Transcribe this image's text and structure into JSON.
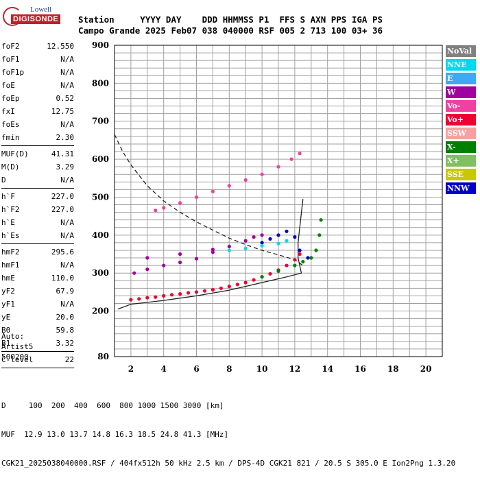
{
  "logo": {
    "top": "Lowell",
    "main": "DIGISONDE"
  },
  "header": {
    "labels": [
      "Station",
      "YYYY",
      "DAY",
      "DDD",
      "HHMMSS",
      "P1",
      "FFS",
      "S",
      "AXN",
      "PPS",
      "IGA",
      "PS"
    ],
    "values": [
      "Campo Grande",
      "2025",
      "Feb07",
      "038",
      "040000",
      "RSF",
      "005",
      "2",
      "713",
      "100",
      "03+",
      "36"
    ]
  },
  "params": [
    {
      "name": "foF2",
      "value": "12.550"
    },
    {
      "name": "foF1",
      "value": "N/A"
    },
    {
      "name": "foF1p",
      "value": "N/A"
    },
    {
      "name": "foE",
      "value": "N/A"
    },
    {
      "name": "foEp",
      "value": "0.52"
    },
    {
      "name": "fxI",
      "value": "12.75"
    },
    {
      "name": "foEs",
      "value": "N/A"
    },
    {
      "name": "fmin",
      "value": "2.30"
    },
    {
      "sep": true
    },
    {
      "name": "MUF(D)",
      "value": "41.31"
    },
    {
      "name": "M(D)",
      "value": "3.29"
    },
    {
      "name": "D",
      "value": "N/A"
    },
    {
      "sep": true
    },
    {
      "name": "h`F",
      "value": "227.0"
    },
    {
      "name": "h`F2",
      "value": "227.0"
    },
    {
      "name": "h`E",
      "value": "N/A"
    },
    {
      "name": "h`Es",
      "value": "N/A"
    },
    {
      "sep": true
    },
    {
      "name": "hmF2",
      "value": "295.6"
    },
    {
      "name": "hmF1",
      "value": "N/A"
    },
    {
      "name": "hmE",
      "value": "110.0"
    },
    {
      "name": "yF2",
      "value": "67.9"
    },
    {
      "name": "yF1",
      "value": "N/A"
    },
    {
      "name": "yE",
      "value": "20.0"
    },
    {
      "name": "B0",
      "value": "59.8"
    },
    {
      "name": "B1",
      "value": "3.32"
    },
    {
      "sep": true
    },
    {
      "name": "C-level",
      "value": "22"
    },
    {
      "sep": true
    }
  ],
  "auto": {
    "line1": "Auto:",
    "line2": "Artist5",
    "line3": "500200"
  },
  "footer": {
    "line1": "D     100  200  400  600  800 1000 1500 3000 [km]",
    "line2": "MUF  12.9 13.0 13.7 14.8 16.3 18.5 24.8 41.3 [MHz]",
    "line3": "CGK21_2025038040000.RSF / 404fx512h 50 kHz 2.5 km / DPS-4D CGK21 821 / 20.5 S 305.0 E Ion2Png 1.3.20"
  },
  "legend": [
    {
      "label": "NoVal",
      "color": "#808080"
    },
    {
      "label": "NNE",
      "color": "#00d8f0"
    },
    {
      "label": "E",
      "color": "#40a8f0"
    },
    {
      "label": "W",
      "color": "#a000a0"
    },
    {
      "label": "Vo-",
      "color": "#f040a0"
    },
    {
      "label": "Vo+",
      "color": "#f00030"
    },
    {
      "label": "SSW",
      "color": "#f8a0a0"
    },
    {
      "label": "X-",
      "color": "#008000"
    },
    {
      "label": "X+",
      "color": "#80c060"
    },
    {
      "label": "SSE",
      "color": "#c8c800"
    },
    {
      "label": "NNW",
      "color": "#0000c8"
    }
  ],
  "chart_data": {
    "type": "scatter",
    "xlim": [
      1,
      21
    ],
    "ylim": [
      80,
      900
    ],
    "x_ticks": [
      2,
      4,
      6,
      8,
      10,
      12,
      14,
      16,
      18,
      20
    ],
    "y_ticks": [
      80,
      200,
      300,
      400,
      500,
      600,
      700,
      800,
      900
    ],
    "grid": true,
    "series": [
      {
        "name": "Vo+",
        "color": "#f00030",
        "points": [
          [
            2.0,
            230
          ],
          [
            2.5,
            232
          ],
          [
            3,
            235
          ],
          [
            3.5,
            237
          ],
          [
            4,
            240
          ],
          [
            4.5,
            243
          ],
          [
            5,
            245
          ],
          [
            5.5,
            248
          ],
          [
            6,
            250
          ],
          [
            6.5,
            253
          ],
          [
            7,
            256
          ],
          [
            7.5,
            260
          ],
          [
            8,
            265
          ],
          [
            8.5,
            270
          ],
          [
            9,
            275
          ],
          [
            9.5,
            282
          ],
          [
            10,
            290
          ],
          [
            10.5,
            298
          ],
          [
            11,
            308
          ],
          [
            11.5,
            320
          ],
          [
            12,
            335
          ],
          [
            12.3,
            350
          ]
        ]
      },
      {
        "name": "Vo-",
        "color": "#f040a0",
        "points": [
          [
            3.5,
            465
          ],
          [
            4,
            472
          ],
          [
            5,
            485
          ],
          [
            6,
            500
          ],
          [
            7,
            515
          ],
          [
            8,
            530
          ],
          [
            9,
            545
          ],
          [
            10,
            560
          ],
          [
            11,
            580
          ],
          [
            11.8,
            600
          ],
          [
            12.3,
            615
          ]
        ]
      },
      {
        "name": "W",
        "color": "#a000a0",
        "points": [
          [
            2.2,
            300
          ],
          [
            3,
            310
          ],
          [
            4,
            320
          ],
          [
            5,
            328
          ],
          [
            6,
            338
          ],
          [
            7,
            355
          ],
          [
            8,
            370
          ],
          [
            9,
            385
          ],
          [
            9.5,
            395
          ],
          [
            10,
            400
          ],
          [
            3,
            340
          ],
          [
            5,
            350
          ],
          [
            7,
            362
          ]
        ]
      },
      {
        "name": "NNW",
        "color": "#0000c8",
        "points": [
          [
            10,
            380
          ],
          [
            10.5,
            390
          ],
          [
            11,
            400
          ],
          [
            11.5,
            410
          ],
          [
            12,
            395
          ],
          [
            12.3,
            360
          ],
          [
            12.8,
            340
          ]
        ]
      },
      {
        "name": "NNE",
        "color": "#00d8f0",
        "points": [
          [
            8,
            360
          ],
          [
            9,
            365
          ],
          [
            10,
            372
          ],
          [
            11,
            378
          ],
          [
            11.5,
            385
          ]
        ]
      },
      {
        "name": "X-",
        "color": "#008000",
        "points": [
          [
            10,
            290
          ],
          [
            11,
            305
          ],
          [
            12,
            320
          ],
          [
            12.5,
            330
          ],
          [
            13,
            340
          ],
          [
            13.3,
            360
          ],
          [
            13.5,
            400
          ],
          [
            13.6,
            440
          ]
        ]
      }
    ],
    "curves": [
      {
        "name": "profile",
        "style": "solid",
        "points": [
          [
            1.2,
            205
          ],
          [
            2,
            218
          ],
          [
            4,
            228
          ],
          [
            6,
            240
          ],
          [
            8,
            255
          ],
          [
            10,
            275
          ],
          [
            11.5,
            290
          ],
          [
            12.4,
            300
          ],
          [
            12.2,
            340
          ],
          [
            12.2,
            380
          ],
          [
            12.3,
            420
          ],
          [
            12.5,
            495
          ]
        ]
      },
      {
        "name": "muf",
        "style": "dashed",
        "points": [
          [
            1,
            665
          ],
          [
            1.5,
            620
          ],
          [
            2,
            585
          ],
          [
            3,
            530
          ],
          [
            4,
            490
          ],
          [
            5,
            460
          ],
          [
            6,
            435
          ],
          [
            7,
            413
          ],
          [
            8,
            392
          ],
          [
            9,
            375
          ],
          [
            10,
            360
          ],
          [
            11,
            348
          ],
          [
            12,
            335
          ],
          [
            12.5,
            320
          ]
        ]
      }
    ]
  }
}
